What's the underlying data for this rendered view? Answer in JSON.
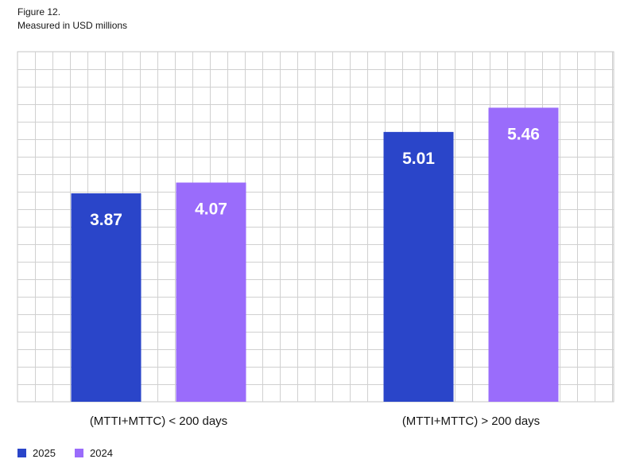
{
  "figure": {
    "title": "Figure 12.",
    "subtitle": "Measured in USD millions"
  },
  "legend": [
    {
      "label": "2025",
      "color": "#2a45c9"
    },
    {
      "label": "2024",
      "color": "#9a6cfb"
    }
  ],
  "chart_data": {
    "type": "bar",
    "categories": [
      "(MTTI+MTTC) < 200 days",
      "(MTTI+MTTC) > 200 days"
    ],
    "series": [
      {
        "name": "2025",
        "color": "#2a45c9",
        "values": [
          3.87,
          5.01
        ]
      },
      {
        "name": "2024",
        "color": "#9a6cfb",
        "values": [
          4.07,
          5.46
        ]
      }
    ],
    "ylim": [
      0,
      6.5
    ],
    "grid": true,
    "legend_position": "bottom-left",
    "xlabel": "",
    "ylabel": ""
  }
}
